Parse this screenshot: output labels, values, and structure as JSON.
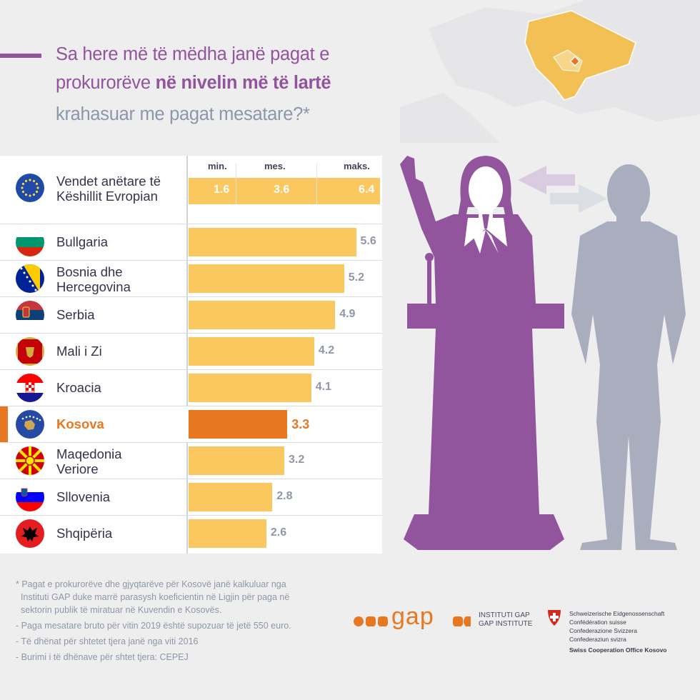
{
  "title": {
    "line1": "Sa here më të mëdha janë pagat e",
    "line2_plain": "prokurorëve ",
    "line2_bold": "në nivelin më të lartë",
    "line3": "krahasuar me pagat mesatare?*"
  },
  "colors": {
    "accent": "#93549e",
    "bar": "#fbc85f",
    "highlight": "#e87722",
    "figure_other": "#a9adbd"
  },
  "chart_data": {
    "type": "bar",
    "orientation": "horizontal",
    "xlim": [
      0,
      6.4
    ],
    "header_row": {
      "label": "Vendet anëtare të Këshillit  Evropian",
      "label_line1": "Vendet anëtare të",
      "label_line2": "Këshillit  Evropian",
      "columns": [
        "min.",
        "mes.",
        "maks."
      ],
      "values": [
        1.6,
        3.6,
        6.4
      ]
    },
    "categories": [
      {
        "line1": "Bullgaria",
        "line2": ""
      },
      {
        "line1": "Bosnia dhe",
        "line2": "Hercegovina"
      },
      {
        "line1": "Serbia",
        "line2": ""
      },
      {
        "line1": "Mali i Zi",
        "line2": ""
      },
      {
        "line1": "Kroacia",
        "line2": ""
      },
      {
        "line1": "Kosova",
        "line2": ""
      },
      {
        "line1": "Maqedonia",
        "line2": "Veriore"
      },
      {
        "line1": "Sllovenia",
        "line2": ""
      },
      {
        "line1": "Shqipëria",
        "line2": ""
      }
    ],
    "values": [
      5.6,
      5.2,
      4.9,
      4.2,
      4.1,
      3.3,
      3.2,
      2.8,
      2.6
    ],
    "value_labels": [
      "5.6",
      "5.2",
      "4.9",
      "4.2",
      "4.1",
      "3.3",
      "3.2",
      "2.8",
      "2.6"
    ],
    "highlight": "Kosova",
    "flag_icons": [
      "bulgaria-flag",
      "bosnia-flag",
      "serbia-flag",
      "montenegro-flag",
      "croatia-flag",
      "kosovo-flag",
      "north-macedonia-flag",
      "slovenia-flag",
      "albania-flag"
    ]
  },
  "footnotes": [
    "* Pagat e prokurorëve dhe gjyqtarëve për Kosovë janë kalkuluar nga",
    "  Instituti GAP duke marrë parasysh koeficientin në Ligjin për paga në",
    "  sektorin publik të miratuar në Kuvendin e Kosovës.",
    "- Paga mesatare bruto për vitin 2019 është supozuar të jetë 550 euro.",
    "- Të dhënat për shtetet tjera janë nga viti 2016",
    "- Burimi i të dhënave për shtet tjera: CEPEJ"
  ],
  "logos": {
    "gap_wordmark": "gap",
    "gap_sub1": "INSTITUTI GAP",
    "gap_sub2": "GAP INSTITUTE",
    "swiss_lines": [
      "Schweizerische Eidgenossenschaft",
      "Confédération suisse",
      "Confederazione Svizzera",
      "Confederaziun svizra"
    ],
    "swiss_office": "Swiss Cooperation Office Kosovo"
  }
}
